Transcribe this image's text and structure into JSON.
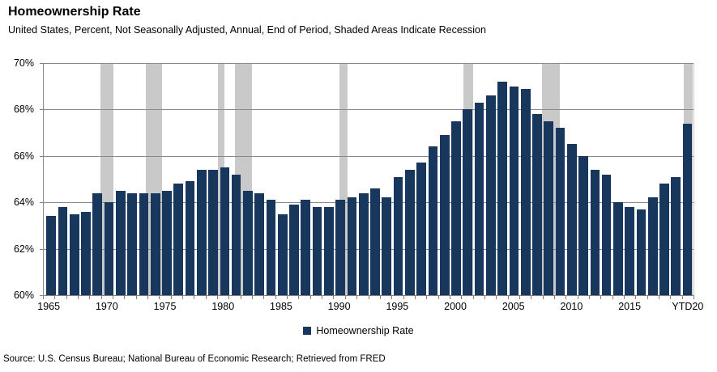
{
  "header": {
    "title": "Homeownership Rate",
    "subtitle": "United States, Percent, Not Seasonally Adjusted, Annual, End of Period, Shaded Areas Indicate Recession"
  },
  "footer": {
    "source": "Source: U.S. Census Bureau; National Bureau of Economic Research; Retrieved from FRED"
  },
  "legend": {
    "label": "Homeownership Rate"
  },
  "chart_data": {
    "type": "bar",
    "title": "Homeownership Rate",
    "subtitle": "United States, Percent, Not Seasonally Adjusted, Annual, End of Period, Shaded Areas Indicate Recession",
    "source_note": "Source: U.S. Census Bureau; National Bureau of Economic Research; Retrieved from FRED",
    "legend_label": "Homeownership Rate",
    "legend_position": "bottom",
    "grid": true,
    "bar_color": "#17375d",
    "recession_band_color": "#c9c9c9",
    "gridline_color": "#8a8a8a",
    "ylim": [
      60,
      70
    ],
    "ytick_labels": [
      "70%",
      "68%",
      "66%",
      "64%",
      "62%",
      "60%"
    ],
    "ytick_values": [
      70,
      68,
      66,
      64,
      62,
      60
    ],
    "categories": [
      "1965",
      "1966",
      "1967",
      "1968",
      "1969",
      "1970",
      "1971",
      "1972",
      "1973",
      "1974",
      "1975",
      "1976",
      "1977",
      "1978",
      "1979",
      "1980",
      "1981",
      "1982",
      "1983",
      "1984",
      "1985",
      "1986",
      "1987",
      "1988",
      "1989",
      "1990",
      "1991",
      "1992",
      "1993",
      "1994",
      "1995",
      "1996",
      "1997",
      "1998",
      "1999",
      "2000",
      "2001",
      "2002",
      "2003",
      "2004",
      "2005",
      "2006",
      "2007",
      "2008",
      "2009",
      "2010",
      "2011",
      "2012",
      "2013",
      "2014",
      "2015",
      "2016",
      "2017",
      "2018",
      "2019",
      "YTD20"
    ],
    "values": [
      63.4,
      63.8,
      63.5,
      63.6,
      64.4,
      64.0,
      64.5,
      64.4,
      64.4,
      64.4,
      64.5,
      64.8,
      64.9,
      65.4,
      65.4,
      65.5,
      65.2,
      64.5,
      64.4,
      64.1,
      63.5,
      63.9,
      64.1,
      63.8,
      63.8,
      64.1,
      64.2,
      64.4,
      64.6,
      64.2,
      65.1,
      65.4,
      65.7,
      66.4,
      66.9,
      67.5,
      68.0,
      68.3,
      68.6,
      69.2,
      69.0,
      68.9,
      67.8,
      67.5,
      67.2,
      66.5,
      66.0,
      65.4,
      65.2,
      64.0,
      63.8,
      63.7,
      64.2,
      64.8,
      65.1,
      67.4
    ],
    "xtick_labels": [
      {
        "label": "1965",
        "slot": 0
      },
      {
        "label": "1970",
        "slot": 5
      },
      {
        "label": "1975",
        "slot": 10
      },
      {
        "label": "1980",
        "slot": 15
      },
      {
        "label": "1985",
        "slot": 20
      },
      {
        "label": "1990",
        "slot": 25
      },
      {
        "label": "1995",
        "slot": 30
      },
      {
        "label": "2000",
        "slot": 35
      },
      {
        "label": "2005",
        "slot": 40
      },
      {
        "label": "2010",
        "slot": 45
      },
      {
        "label": "2015",
        "slot": 50
      },
      {
        "label": "YTD20",
        "slot": 55
      }
    ],
    "recessions": [
      {
        "start": 1969.92,
        "end": 1971.0
      },
      {
        "start": 1973.83,
        "end": 1975.17
      },
      {
        "start": 1980.0,
        "end": 1980.58
      },
      {
        "start": 1981.5,
        "end": 1982.92
      },
      {
        "start": 1990.5,
        "end": 1991.17
      },
      {
        "start": 2001.17,
        "end": 2002.0
      },
      {
        "start": 2007.92,
        "end": 2009.5
      },
      {
        "start": 2020.17,
        "end": 2020.92
      }
    ],
    "axis_first_year": 1965,
    "axis_slot_count": 56
  }
}
